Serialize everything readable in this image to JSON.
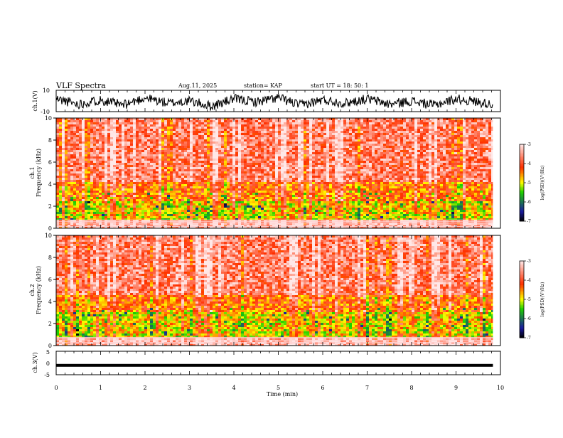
{
  "chart_data": [
    {
      "type": "line",
      "panel": "ch1-waveform",
      "ylabel": "ch.1(V)",
      "ylim": [
        -10,
        10
      ],
      "yticks": [
        "10",
        "-10"
      ],
      "x": [
        0,
        0.5,
        1,
        1.5,
        2,
        2.5,
        3,
        3.5,
        4,
        4.5,
        5,
        5.5,
        6,
        6.5,
        7,
        7.5,
        8,
        8.5,
        9,
        9.5,
        9.83
      ],
      "y": [
        2,
        -3,
        1,
        -4,
        3,
        -2,
        0,
        -5,
        2,
        -1,
        3,
        -4,
        1,
        -2,
        2,
        -3,
        0,
        -4,
        2,
        -1,
        -3
      ],
      "note_values": "approximate trace read from noisy waveform"
    },
    {
      "type": "heatmap",
      "panel": "ch1-spectrogram",
      "ylabel_line1": "ch.1",
      "ylabel_line2": "Frequency (kHz)",
      "ylim": [
        0,
        10
      ],
      "yticks": [
        "0",
        "2",
        "4",
        "6",
        "8",
        "10"
      ],
      "colorbar": {
        "label": "log(PSD)(V²/Hz)",
        "ticks": [
          "-3",
          "-4",
          "-5",
          "-6",
          "-7"
        ],
        "range": [
          -7,
          -3
        ],
        "colors": [
          "#000000",
          "#1a1aa0",
          "#1ed000",
          "#ffff00",
          "#ff3000",
          "#ffe8e8"
        ]
      },
      "bands_khz": [
        {
          "from": 0,
          "to": 0.9,
          "level": "line"
        },
        {
          "from": 0.9,
          "to": 2.6,
          "level": -4.9
        },
        {
          "from": 2.6,
          "to": 4.2,
          "level": -4.4
        },
        {
          "from": 4.2,
          "to": 10,
          "level": -3.7
        }
      ]
    },
    {
      "type": "heatmap",
      "panel": "ch2-spectrogram",
      "ylabel_line1": "ch.2",
      "ylabel_line2": "Frequency (kHz)",
      "ylim": [
        0,
        10
      ],
      "yticks": [
        "0",
        "2",
        "4",
        "6",
        "8",
        "10"
      ],
      "colorbar": {
        "label": "log(PSD)(V²/Hz)",
        "ticks": [
          "-3",
          "-4",
          "-5",
          "-6",
          "-7"
        ],
        "range": [
          -7,
          -3
        ],
        "colors": [
          "#000000",
          "#1a1aa0",
          "#1ed000",
          "#ffff00",
          "#ff3000",
          "#ffe8e8"
        ]
      },
      "bands_khz": [
        {
          "from": 0,
          "to": 0.9,
          "level": "line"
        },
        {
          "from": 0.9,
          "to": 3.2,
          "level": -4.9
        },
        {
          "from": 3.2,
          "to": 4.6,
          "level": -4.4
        },
        {
          "from": 4.6,
          "to": 10,
          "level": -3.7
        }
      ]
    },
    {
      "type": "line",
      "panel": "ch3-waveform",
      "ylabel": "ch.3(V)",
      "ylim": [
        -5,
        5
      ],
      "yticks": [
        "5",
        "0",
        "-5"
      ],
      "x": [
        0,
        9.83
      ],
      "y": [
        -1,
        -1
      ]
    }
  ],
  "header": {
    "title": "VLF Spectra",
    "date": "Aug.11, 2025",
    "station": "station= KAP",
    "start": "start  UT =   18: 50: 1"
  },
  "xaxis": {
    "label": "Time (min)",
    "xlim": [
      0,
      10
    ],
    "ticks": [
      "0",
      "1",
      "2",
      "3",
      "4",
      "5",
      "6",
      "7",
      "8",
      "9",
      "10"
    ],
    "data_end": 9.83
  }
}
